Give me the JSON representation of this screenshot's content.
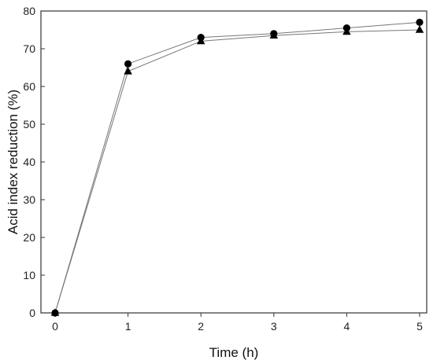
{
  "chart_data": {
    "type": "line",
    "title": "",
    "xlabel": "Time (h)",
    "ylabel": "Acid index reduction (%)",
    "xlim": [
      0,
      5
    ],
    "ylim": [
      0,
      80
    ],
    "xticks": [
      0,
      1,
      2,
      3,
      4,
      5
    ],
    "yticks": [
      0,
      10,
      20,
      30,
      40,
      50,
      60,
      70,
      80
    ],
    "grid": false,
    "legend": "none",
    "series": [
      {
        "marker": "circle",
        "color": "#000000",
        "x": [
          0,
          1,
          2,
          3,
          4,
          5
        ],
        "y": [
          0,
          66,
          73,
          74,
          75.5,
          77
        ]
      },
      {
        "marker": "triangle",
        "color": "#000000",
        "x": [
          0,
          1,
          2,
          3,
          4,
          5
        ],
        "y": [
          0,
          64,
          72,
          73.5,
          74.5,
          75
        ]
      }
    ]
  }
}
